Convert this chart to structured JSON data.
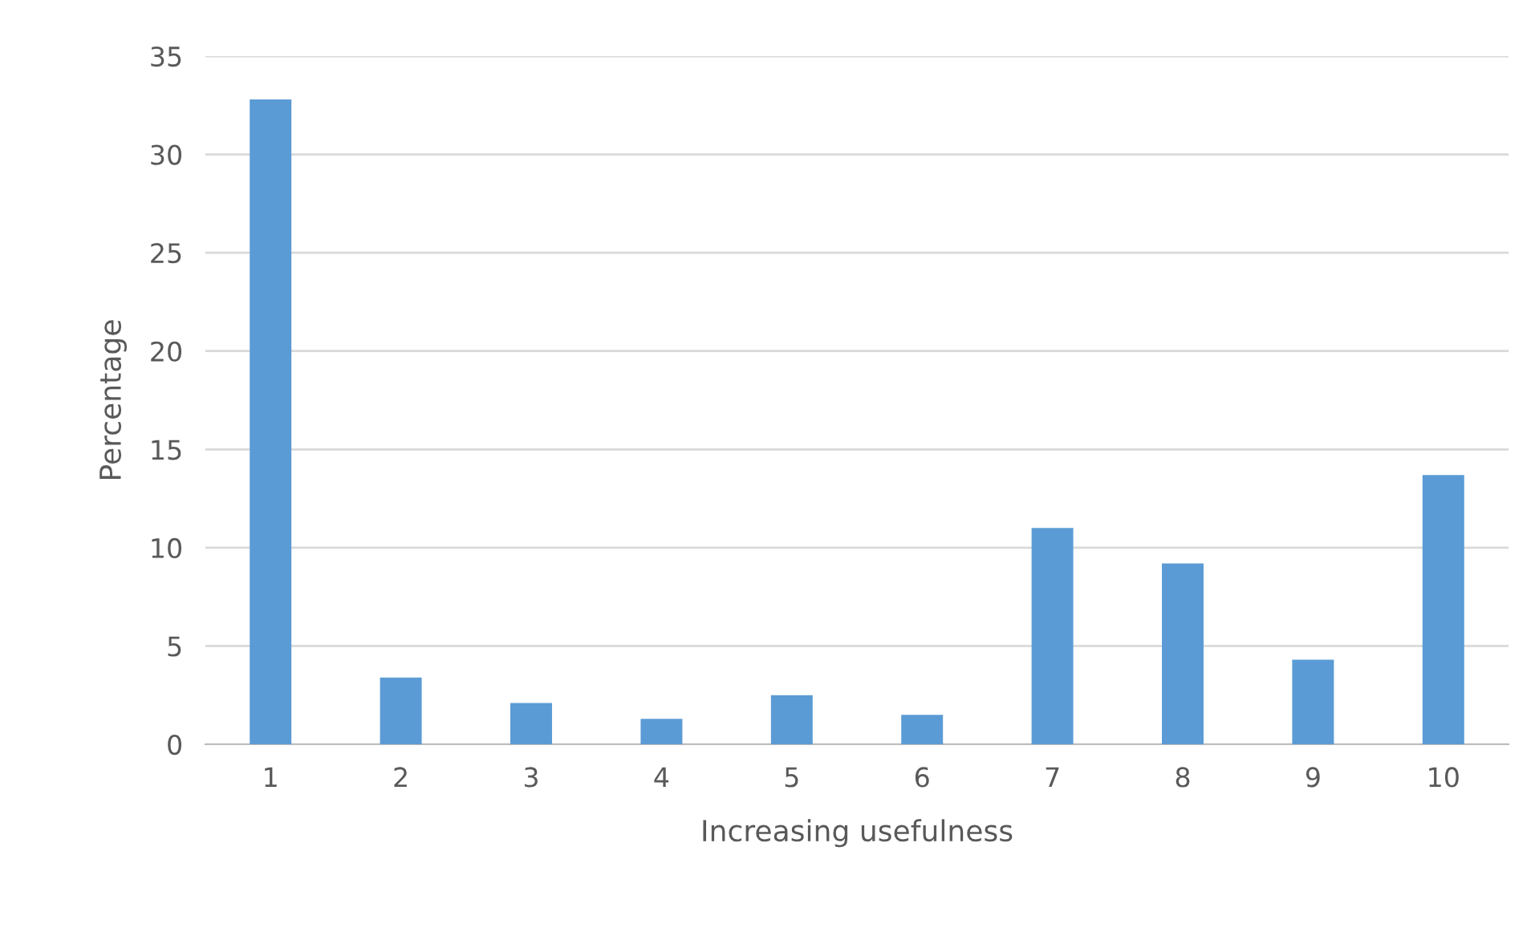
{
  "chart_data": {
    "type": "bar",
    "xlabel": "Increasing usefulness",
    "ylabel": "Percentage",
    "categories": [
      "1",
      "2",
      "3",
      "4",
      "5",
      "6",
      "7",
      "8",
      "9",
      "10"
    ],
    "values": [
      32.8,
      3.4,
      2.1,
      1.3,
      2.5,
      1.5,
      11.0,
      9.2,
      4.3,
      13.7
    ],
    "color": "#5b9bd5",
    "ylim": [
      0,
      35
    ],
    "yticks": [
      0,
      5,
      10,
      15,
      20,
      25,
      30,
      35
    ],
    "grid": "y",
    "legend": false
  }
}
